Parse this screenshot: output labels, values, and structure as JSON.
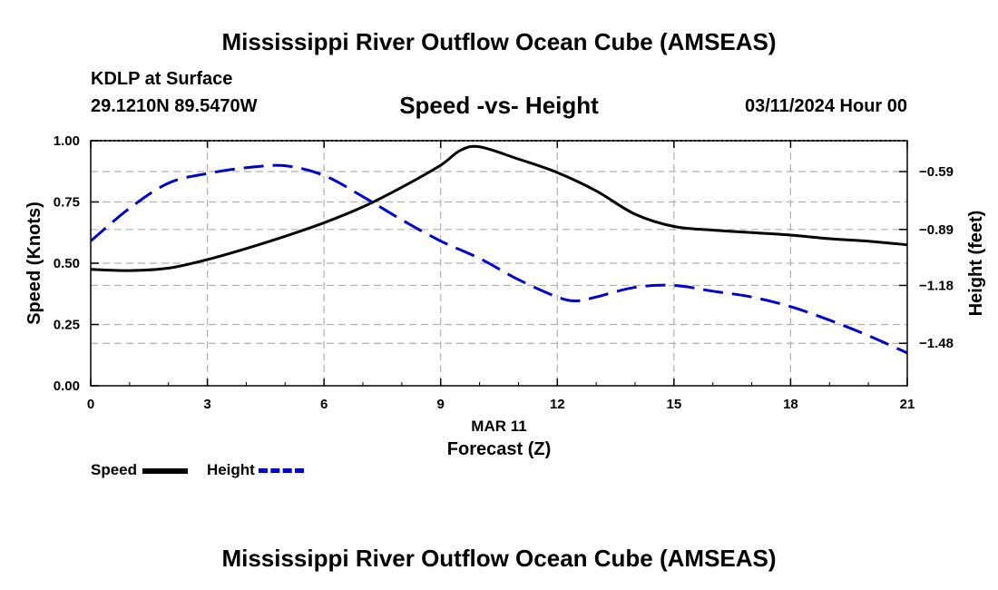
{
  "header": {
    "title_top": "Mississippi River Outflow Ocean Cube (AMSEAS)",
    "title_bottom": "Mississippi River Outflow Ocean Cube (AMSEAS)",
    "station": "KDLP at Surface",
    "coords": "29.1210N  89.5470W",
    "datetime": "03/11/2024 Hour 00"
  },
  "legend": {
    "speed_label": "Speed",
    "height_label": "Height"
  },
  "colors": {
    "speed": "#000000",
    "height": "#0000cc",
    "grid": "#b0b0b0"
  },
  "chart_data": {
    "type": "line",
    "title": "Speed -vs- Height",
    "xlabel": "Forecast (Z)",
    "xsublabel": "MAR 11",
    "xlim": [
      0,
      21
    ],
    "xticks": [
      0,
      3,
      6,
      9,
      12,
      15,
      18,
      21
    ],
    "left_axis": {
      "label": "Speed (Knots)",
      "ylim": [
        0,
        1
      ],
      "ticks": [
        0,
        0.25,
        0.5,
        0.75,
        1.0
      ],
      "tick_labels": [
        "0.00",
        "0.25",
        "0.50",
        "0.75",
        "1.00"
      ]
    },
    "right_axis": {
      "label": "Height (feet)",
      "ylim": [
        -1.7,
        -0.43
      ],
      "ticks": [
        -0.59,
        -0.89,
        -1.18,
        -1.48
      ],
      "tick_labels": [
        "−0.59",
        "−0.89",
        "−1.18",
        "−1.48"
      ]
    },
    "series": [
      {
        "name": "Speed",
        "axis": "left",
        "style": "solid",
        "x": [
          0,
          1,
          2,
          3,
          4,
          5,
          6,
          7,
          8,
          9,
          9.5,
          10,
          11,
          12,
          13,
          14,
          15,
          16,
          17,
          18,
          19,
          20,
          21
        ],
        "values": [
          0.475,
          0.47,
          0.48,
          0.515,
          0.56,
          0.61,
          0.665,
          0.73,
          0.81,
          0.9,
          0.96,
          0.975,
          0.925,
          0.87,
          0.795,
          0.7,
          0.65,
          0.635,
          0.625,
          0.615,
          0.6,
          0.59,
          0.575
        ]
      },
      {
        "name": "Height",
        "axis": "right",
        "style": "dashed",
        "x": [
          0,
          1,
          2,
          3,
          4,
          5,
          6,
          7,
          8,
          9,
          10,
          11,
          12,
          12.5,
          13,
          14,
          15,
          16,
          17,
          18,
          19,
          20,
          21
        ],
        "values": [
          -0.95,
          -0.78,
          -0.65,
          -0.6,
          -0.57,
          -0.56,
          -0.61,
          -0.72,
          -0.84,
          -0.95,
          -1.04,
          -1.15,
          -1.24,
          -1.26,
          -1.24,
          -1.19,
          -1.18,
          -1.21,
          -1.24,
          -1.29,
          -1.36,
          -1.44,
          -1.53
        ]
      }
    ]
  }
}
